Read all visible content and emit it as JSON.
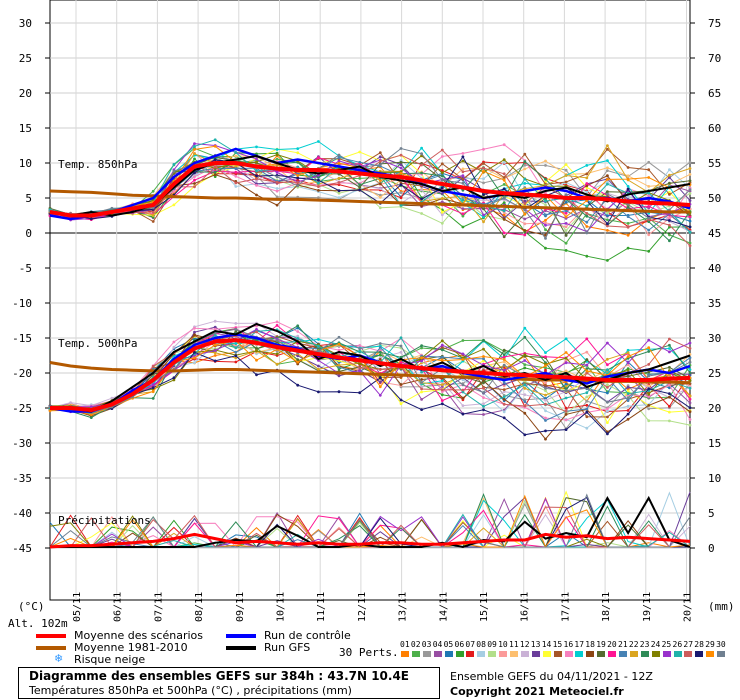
{
  "chart_data": {
    "type": "line",
    "left_axis": {
      "ticks": [
        30,
        25,
        20,
        15,
        10,
        5,
        0,
        -5,
        -10,
        -15,
        -20,
        -25,
        -30,
        -35,
        -40,
        -45
      ],
      "unit": "(°C)"
    },
    "right_axis": {
      "ticks": [
        75,
        70,
        65,
        60,
        55,
        50,
        45,
        40,
        35,
        30,
        25,
        20,
        15,
        10,
        5,
        0
      ],
      "unit": "(mm)"
    },
    "altitude": "Alt. 102m",
    "dates": [
      "05/11",
      "06/11",
      "07/11",
      "08/11",
      "09/11",
      "10/11",
      "11/11",
      "12/11",
      "13/11",
      "14/11",
      "15/11",
      "16/11",
      "17/11",
      "18/11",
      "19/11",
      "20/11"
    ],
    "panel_labels": {
      "t850": "Temp. 850hPa",
      "t500": "Temp. 500hPa",
      "precip": "Précipitations"
    },
    "series": [
      {
        "name": "Moyenne des scénarios",
        "color": "#ff0000"
      },
      {
        "name": "Moyenne 1981-2010",
        "color": "#b35900"
      },
      {
        "name": "Run de contrôle",
        "color": "#0000ff"
      },
      {
        "name": "Run GFS",
        "color": "#000000"
      }
    ],
    "t850": {
      "mean": [
        3,
        2.5,
        2.5,
        3,
        3.5,
        4,
        7,
        9.5,
        10,
        10,
        9.5,
        9.2,
        9,
        9,
        8.8,
        8.5,
        8.2,
        8,
        7.5,
        7,
        6.5,
        6,
        5.7,
        5.5,
        5.3,
        5,
        5,
        4.8,
        4.5,
        4.3,
        4.2,
        4
      ],
      "clim": [
        6,
        5.9,
        5.8,
        5.6,
        5.4,
        5.3,
        5.2,
        5.1,
        5,
        5,
        4.9,
        4.8,
        4.8,
        4.7,
        4.6,
        4.5,
        4.4,
        4.3,
        4.2,
        4.1,
        4,
        3.9,
        3.8,
        3.7,
        3.6,
        3.5,
        3.4,
        3.3,
        3.2,
        3.1,
        3,
        3
      ],
      "control": [
        2.5,
        2,
        2.5,
        3,
        4,
        5,
        8,
        10,
        11,
        12,
        11,
        10,
        10.5,
        10,
        9.5,
        9,
        8.5,
        8,
        7,
        6,
        5.5,
        5,
        5.5,
        6,
        6.5,
        6,
        5,
        5,
        4.5,
        5,
        4.5,
        3.5
      ],
      "gfs": [
        3,
        2.5,
        3,
        2.5,
        3,
        4,
        6.5,
        9,
        10,
        10.5,
        11,
        10,
        9,
        8.5,
        9,
        9.5,
        8,
        7.5,
        7,
        6,
        6.5,
        5,
        5.5,
        5,
        6,
        6.5,
        5.5,
        4.5,
        5.5,
        6,
        6.5,
        7
      ]
    },
    "t500": {
      "mean": [
        -25,
        -25,
        -25.3,
        -24.5,
        -23,
        -21,
        -18.5,
        -16.5,
        -15.5,
        -15.3,
        -15.7,
        -16.3,
        -16.8,
        -17.3,
        -17.8,
        -18.2,
        -18.6,
        -19,
        -19.3,
        -19.6,
        -19.8,
        -20,
        -20.2,
        -20.3,
        -20.5,
        -20.6,
        -20.8,
        -21,
        -21,
        -21,
        -20.8,
        -20.7
      ],
      "clim": [
        -18.5,
        -19,
        -19.3,
        -19.5,
        -19.6,
        -19.7,
        -19.7,
        -19.6,
        -19.5,
        -19.5,
        -19.6,
        -19.7,
        -19.8,
        -19.9,
        -20,
        -20.1,
        -20.2,
        -20.3,
        -20.4,
        -20.5,
        -20.6,
        -20.7,
        -20.8,
        -20.9,
        -21,
        -21,
        -21.1,
        -21.2,
        -21.2,
        -21.3,
        -21.3,
        -21.4
      ],
      "control": [
        -25,
        -25.5,
        -25.5,
        -24.5,
        -22.5,
        -21,
        -18,
        -16,
        -15,
        -14.5,
        -15,
        -16,
        -16.5,
        -17.5,
        -18,
        -17.5,
        -18.5,
        -19,
        -19.5,
        -19,
        -20,
        -20.5,
        -21,
        -20.5,
        -20,
        -21,
        -21.5,
        -20.5,
        -20,
        -19.5,
        -20,
        -19
      ],
      "gfs": [
        -25,
        -25,
        -25.5,
        -24,
        -22,
        -20,
        -17,
        -15.5,
        -14,
        -14.5,
        -13,
        -14,
        -15.5,
        -18,
        -17,
        -17.5,
        -19,
        -18,
        -19.5,
        -18.5,
        -20,
        -19,
        -20.5,
        -20,
        -21,
        -20,
        -22,
        -21,
        -20,
        -19.5,
        -18.5,
        -17.5
      ]
    },
    "precip": {
      "mean": [
        0,
        0.1,
        0.1,
        0.2,
        0.3,
        0.4,
        0.6,
        0.9,
        0.6,
        0.3,
        0.4,
        0.3,
        0.2,
        0.3,
        0.2,
        0.2,
        0.3,
        0.3,
        0.2,
        0.2,
        0.3,
        0.4,
        0.5,
        0.5,
        0.9,
        0.7,
        0.8,
        0.6,
        0.7,
        0.6,
        0.5,
        0.4
      ],
      "gfs": [
        0,
        0,
        0,
        0,
        0,
        0,
        0,
        0,
        0.3,
        0.5,
        0.4,
        1.5,
        0.8,
        0,
        0,
        0.2,
        0,
        0,
        0,
        0.3,
        0,
        0.5,
        0.4,
        1.8,
        0.6,
        1,
        0.7,
        3.5,
        1,
        3.5,
        0.5,
        0
      ]
    },
    "perturbation_count_label": "30 Perts.",
    "perturbations": [
      "01",
      "02",
      "03",
      "04",
      "05",
      "06",
      "07",
      "08",
      "09",
      "10",
      "11",
      "12",
      "13",
      "14",
      "15",
      "16",
      "17",
      "18",
      "19",
      "20",
      "21",
      "22",
      "23",
      "24",
      "25",
      "26",
      "27",
      "28",
      "29",
      "30"
    ],
    "perturbation_colors": [
      "#ff7f00",
      "#4daf4a",
      "#999999",
      "#984ea3",
      "#1f78b4",
      "#33a02c",
      "#e31a1c",
      "#a6cee3",
      "#b2df8a",
      "#fb9a99",
      "#fdbf6f",
      "#cab2d6",
      "#6a3d9a",
      "#ffff33",
      "#a65628",
      "#f781bf",
      "#00ced1",
      "#8b4513",
      "#556b2f",
      "#ff1493",
      "#4682b4",
      "#daa520",
      "#2e8b57",
      "#808000",
      "#9932cc",
      "#20b2aa",
      "#cd5c5c",
      "#191970",
      "#ff8c00",
      "#708090"
    ]
  },
  "legend": {
    "mean": "Moyenne des scénarios",
    "clim": "Moyenne 1981-2010",
    "snow": "Risque neige",
    "control": "Run de contrôle",
    "gfs": "Run GFS"
  },
  "title_box": {
    "line1": "Diagramme des ensembles GEFS sur 384h : 43.7N 10.4E",
    "line2": "Températures 850hPa et 500hPa (°C) , précipitations (mm)"
  },
  "footer": {
    "ensemble": "Ensemble GEFS du 04/11/2021 - 12Z",
    "copyright": "Copyright 2021 Meteociel.fr"
  }
}
